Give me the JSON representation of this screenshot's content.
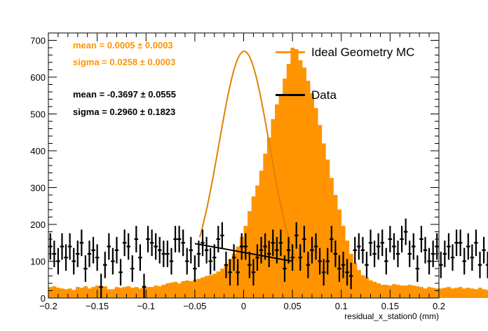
{
  "chart_data": {
    "type": "bar",
    "xlabel": "residual_x_station0 (mm)",
    "ylabel": "",
    "xlim": [
      -0.2,
      0.2
    ],
    "ylim": [
      0,
      720
    ],
    "x_ticks": [
      -0.2,
      -0.15,
      -0.1,
      -0.05,
      0,
      0.05,
      0.1,
      0.15,
      0.2
    ],
    "x_tick_labels": [
      "−0.2",
      "−0.15",
      "−0.1",
      "−0.05",
      "0",
      "0.05",
      "0.1",
      "0.15",
      "0.2"
    ],
    "y_ticks": [
      0,
      100,
      200,
      300,
      400,
      500,
      600,
      700
    ],
    "y_tick_labels": [
      "0",
      "100",
      "200",
      "300",
      "400",
      "500",
      "600",
      "700"
    ],
    "grid": false,
    "legend_position": "top-right",
    "colors": {
      "mc": "#ff9400",
      "data": "#000000"
    },
    "series": [
      {
        "name": "Ideal Geometry MC",
        "type": "histogram",
        "bin_width": 0.004,
        "x_start": -0.2,
        "values": [
          30,
          32,
          28,
          26,
          24,
          26,
          22,
          30,
          28,
          32,
          26,
          30,
          34,
          28,
          32,
          24,
          24,
          30,
          28,
          30,
          32,
          28,
          30,
          26,
          34,
          30,
          30,
          34,
          32,
          36,
          40,
          42,
          44,
          40,
          46,
          48,
          46,
          50,
          52,
          56,
          60,
          62,
          66,
          72,
          80,
          90,
          106,
          120,
          140,
          166,
          196,
          236,
          276,
          306,
          346,
          392,
          436,
          486,
          526,
          550,
          596,
          636,
          680,
          676,
          646,
          626,
          590,
          556,
          516,
          470,
          420,
          376,
          326,
          280,
          240,
          196,
          156,
          120,
          96,
          76,
          62,
          56,
          48,
          44,
          40,
          36,
          36,
          34,
          38,
          36,
          34,
          34,
          36,
          34,
          32,
          30,
          26,
          30,
          28,
          26,
          26,
          28,
          30,
          26,
          28,
          30,
          26,
          28,
          26,
          24,
          28,
          24,
          22,
          26,
          24,
          28,
          24,
          22,
          26,
          30
        ]
      },
      {
        "name": "Data",
        "type": "errorbars",
        "bin_width": 0.004,
        "x_start": -0.2,
        "values": [
          140,
          120,
          100,
          140,
          110,
          140,
          100,
          120,
          150,
          80,
          120,
          130,
          110,
          30,
          90,
          140,
          100,
          130,
          70,
          150,
          140,
          80,
          160,
          110,
          30,
          160,
          150,
          140,
          130,
          120,
          120,
          100,
          160,
          160,
          150,
          100,
          130,
          80,
          120,
          150,
          130,
          100,
          110,
          160,
          170,
          90,
          70,
          110,
          70,
          140,
          140,
          90,
          70,
          110,
          130,
          140,
          120,
          150,
          130,
          150,
          80,
          130,
          110,
          170,
          110,
          160,
          90,
          130,
          140,
          100,
          70,
          100,
          160,
          120,
          80,
          90,
          70,
          60,
          130,
          140,
          130,
          90,
          150,
          120,
          140,
          150,
          100,
          160,
          140,
          120,
          160,
          180,
          120,
          140,
          80,
          160,
          130,
          100,
          120,
          140,
          90,
          120,
          140,
          110,
          150,
          150,
          100,
          140,
          110,
          150,
          90,
          130,
          90,
          140,
          160,
          100,
          90,
          120,
          130,
          120
        ],
        "error": 36
      }
    ],
    "fits": [
      {
        "name": "Ideal Geometry MC fit",
        "type": "gaussian",
        "mean": 0.0005,
        "sigma": 0.0258,
        "amplitude": 640,
        "offset": 30,
        "x_range": [
          -0.045,
          0.055
        ]
      },
      {
        "name": "Data fit",
        "type": "line",
        "x_range": [
          -0.05,
          0.05
        ],
        "y_range": [
          148,
          100
        ]
      }
    ]
  },
  "stats": {
    "mc": {
      "mean": "mean = 0.0005 ± 0.0003",
      "sigma": "sigma = 0.0258 ± 0.0003"
    },
    "data": {
      "mean": "mean = -0.3697 ± 0.0555",
      "sigma": "sigma = 0.2960 ± 0.1823"
    }
  },
  "legend": {
    "mc_label": "Ideal Geometry MC",
    "data_label": "Data"
  }
}
